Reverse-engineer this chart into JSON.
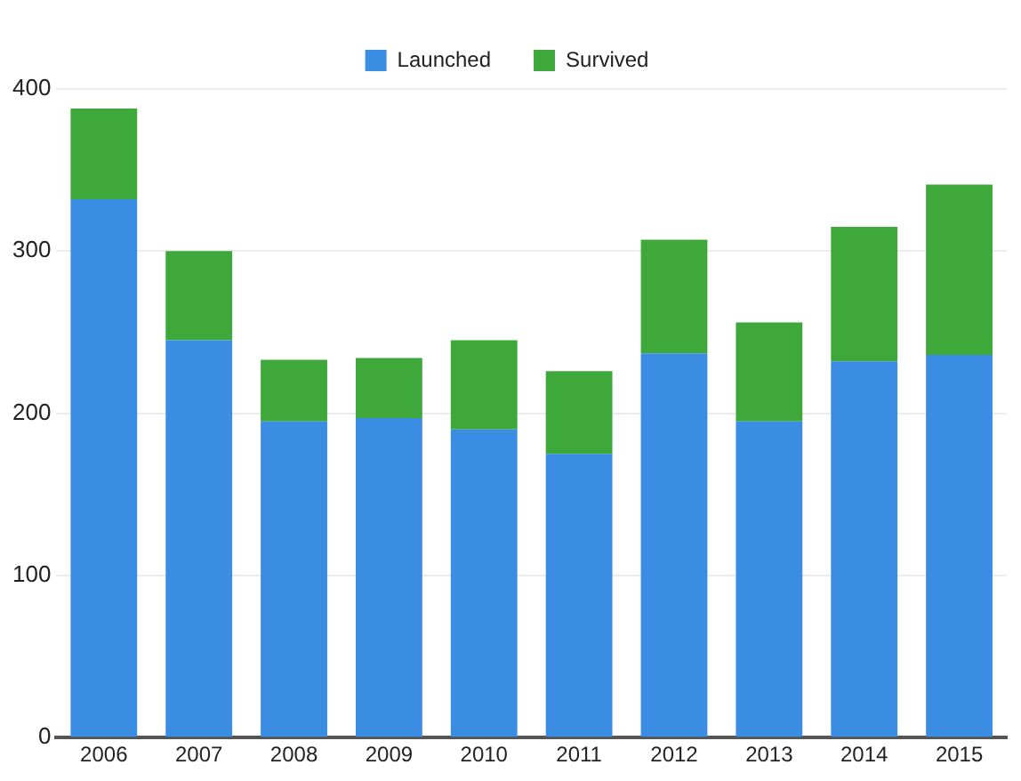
{
  "chart_data": {
    "type": "bar",
    "stacked": true,
    "categories": [
      "2006",
      "2007",
      "2008",
      "2009",
      "2010",
      "2011",
      "2012",
      "2013",
      "2014",
      "2015"
    ],
    "series": [
      {
        "name": "Launched",
        "color": "#3b8de3",
        "values": [
          332,
          245,
          195,
          197,
          190,
          175,
          237,
          195,
          232,
          236
        ]
      },
      {
        "name": "Survived",
        "color": "#3ea83a",
        "values": [
          56,
          55,
          38,
          37,
          55,
          51,
          70,
          61,
          83,
          105
        ]
      }
    ],
    "ylim": [
      0,
      400
    ],
    "yticks": [
      0,
      100,
      200,
      300,
      400
    ],
    "grid": "y",
    "legend": "top"
  }
}
